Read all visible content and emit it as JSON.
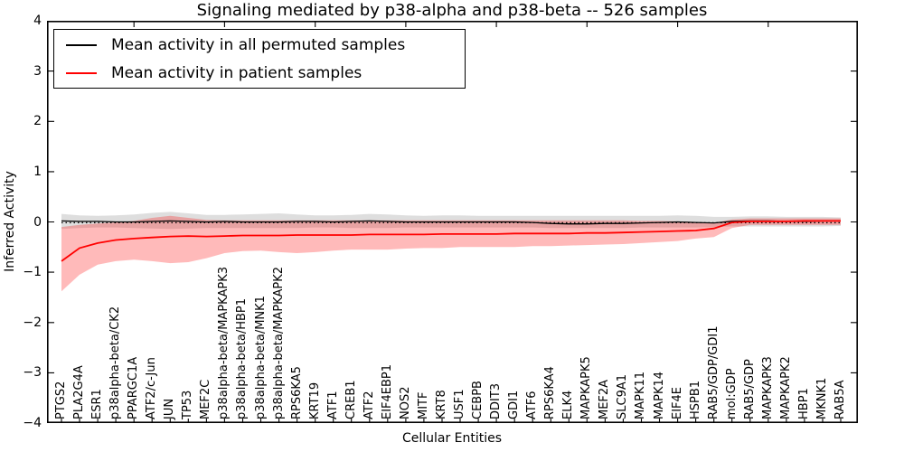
{
  "title": "Signaling mediated by p38-alpha and p38-beta -- 526 samples",
  "axes": {
    "ylabel": "Inferred Activity",
    "xlabel": "Cellular Entities",
    "yticklabels": [
      "4",
      "3",
      "2",
      "1",
      "0",
      "−1",
      "−2",
      "−3",
      "−4"
    ],
    "ytick_values": [
      4,
      3,
      2,
      1,
      0,
      -1,
      -2,
      -3,
      -4
    ]
  },
  "legend": {
    "position": "upper left",
    "items": [
      {
        "label": "Mean activity in all permuted samples",
        "color": "#000000"
      },
      {
        "label": "Mean activity in patient samples",
        "color": "#ff0000"
      }
    ]
  },
  "chart_data": {
    "type": "line",
    "title": "Signaling mediated by p38-alpha and p38-beta -- 526 samples",
    "xlabel": "Cellular Entities",
    "ylabel": "Inferred Activity",
    "ylim": [
      -4,
      4
    ],
    "grid": false,
    "legend_position": "upper left",
    "zero_line": {
      "style": "dotted",
      "value": 0,
      "color": "#000000"
    },
    "categories": [
      "PTGS2",
      "PLA2G4A",
      "ESR1",
      "p38alpha-beta/CK2",
      "PPARGC1A",
      "ATF2/c-Jun",
      "JUN",
      "TP53",
      "MEF2C",
      "p38alpha-beta/MAPKAPK3",
      "p38alpha-beta/HBP1",
      "p38alpha-beta/MNK1",
      "p38alpha-beta/MAPKAPK2",
      "RPS6KA5",
      "KRT19",
      "ATF1",
      "CREB1",
      "ATF2",
      "EIF4EBP1",
      "NOS2",
      "MITF",
      "KRT8",
      "USF1",
      "CEBPB",
      "DDIT3",
      "GDI1",
      "ATF6",
      "RPS6KA4",
      "ELK4",
      "MAPKAPK5",
      "MEF2A",
      "SLC9A1",
      "MAPK11",
      "MAPK14",
      "EIF4E",
      "HSPB1",
      "RAB5/GDP/GDI1",
      "mol:GDP",
      "RAB5/GDP",
      "MAPKAPK3",
      "MAPKAPK2",
      "HBP1",
      "MKNK1",
      "RAB5A"
    ],
    "series": [
      {
        "name": "Mean activity in all permuted samples",
        "color": "#000000",
        "values": [
          0.02,
          0.01,
          0.01,
          0.0,
          0.0,
          0.01,
          0.02,
          0.01,
          0.0,
          0.01,
          0.0,
          0.0,
          0.0,
          0.01,
          0.01,
          0.0,
          0.01,
          0.02,
          0.01,
          0.0,
          0.0,
          0.0,
          0.0,
          0.0,
          0.0,
          0.0,
          -0.01,
          -0.03,
          -0.04,
          -0.04,
          -0.03,
          -0.03,
          -0.02,
          -0.01,
          0.0,
          -0.01,
          -0.02,
          0.01,
          0.02,
          0.02,
          0.01,
          0.01,
          0.02,
          0.02
        ]
      },
      {
        "name": "Mean activity in patient samples",
        "color": "#ff0000",
        "values": [
          -0.78,
          -0.52,
          -0.42,
          -0.36,
          -0.33,
          -0.31,
          -0.29,
          -0.28,
          -0.29,
          -0.28,
          -0.27,
          -0.27,
          -0.27,
          -0.26,
          -0.26,
          -0.26,
          -0.26,
          -0.25,
          -0.25,
          -0.25,
          -0.25,
          -0.24,
          -0.24,
          -0.24,
          -0.24,
          -0.23,
          -0.23,
          -0.23,
          -0.23,
          -0.22,
          -0.22,
          -0.21,
          -0.2,
          -0.19,
          -0.18,
          -0.17,
          -0.13,
          -0.01,
          0.01,
          0.01,
          0.01,
          0.02,
          0.02,
          0.02
        ]
      }
    ],
    "bands": [
      {
        "name": "permuted samples std band",
        "color": "#000000",
        "opacity": 0.13,
        "upper": [
          0.16,
          0.13,
          0.12,
          0.13,
          0.15,
          0.18,
          0.2,
          0.17,
          0.14,
          0.14,
          0.15,
          0.16,
          0.17,
          0.15,
          0.13,
          0.13,
          0.14,
          0.16,
          0.15,
          0.13,
          0.12,
          0.13,
          0.13,
          0.12,
          0.12,
          0.12,
          0.12,
          0.12,
          0.12,
          0.12,
          0.12,
          0.12,
          0.12,
          0.12,
          0.13,
          0.12,
          0.1,
          0.1,
          0.11,
          0.11,
          0.1,
          0.1,
          0.1,
          0.09
        ],
        "lower": [
          -0.14,
          -0.12,
          -0.11,
          -0.11,
          -0.12,
          -0.13,
          -0.14,
          -0.13,
          -0.12,
          -0.12,
          -0.12,
          -0.12,
          -0.12,
          -0.12,
          -0.11,
          -0.11,
          -0.12,
          -0.12,
          -0.12,
          -0.11,
          -0.11,
          -0.11,
          -0.11,
          -0.11,
          -0.11,
          -0.11,
          -0.11,
          -0.12,
          -0.12,
          -0.12,
          -0.12,
          -0.12,
          -0.11,
          -0.11,
          -0.11,
          -0.11,
          -0.1,
          -0.09,
          -0.09,
          -0.09,
          -0.09,
          -0.09,
          -0.09,
          -0.08
        ]
      },
      {
        "name": "patient samples std band",
        "color": "#ff0000",
        "opacity": 0.27,
        "upper": [
          -0.1,
          -0.06,
          -0.03,
          -0.01,
          0.02,
          0.08,
          0.12,
          0.08,
          0.04,
          0.03,
          0.03,
          0.03,
          0.03,
          0.03,
          0.03,
          0.03,
          0.03,
          0.03,
          0.03,
          0.03,
          0.03,
          0.03,
          0.03,
          0.03,
          0.03,
          0.03,
          0.03,
          0.03,
          0.03,
          0.03,
          0.03,
          0.03,
          0.02,
          0.02,
          0.01,
          0.0,
          -0.02,
          0.05,
          0.07,
          0.07,
          0.07,
          0.07,
          0.07,
          0.07
        ],
        "lower": [
          -1.38,
          -1.05,
          -0.85,
          -0.78,
          -0.75,
          -0.78,
          -0.82,
          -0.8,
          -0.72,
          -0.62,
          -0.58,
          -0.57,
          -0.6,
          -0.62,
          -0.6,
          -0.57,
          -0.55,
          -0.55,
          -0.55,
          -0.53,
          -0.52,
          -0.52,
          -0.5,
          -0.5,
          -0.5,
          -0.5,
          -0.48,
          -0.48,
          -0.47,
          -0.46,
          -0.45,
          -0.44,
          -0.42,
          -0.4,
          -0.38,
          -0.33,
          -0.3,
          -0.12,
          -0.06,
          -0.06,
          -0.06,
          -0.06,
          -0.06,
          -0.06
        ]
      }
    ]
  }
}
